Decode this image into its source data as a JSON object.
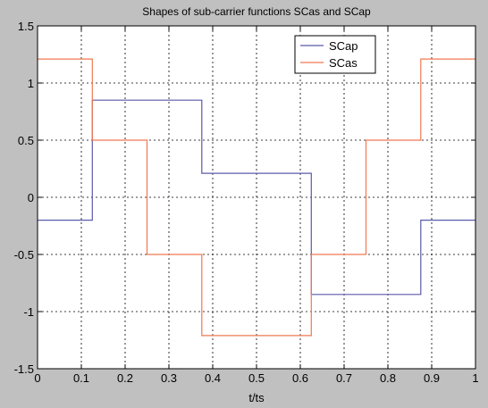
{
  "chart_data": {
    "type": "line",
    "title": "Shapes of sub-carrier functions SCas and SCap",
    "xlabel": "t/ts",
    "ylabel": "",
    "xlim": [
      0,
      1
    ],
    "ylim": [
      -1.5,
      1.5
    ],
    "x_ticks": [
      0,
      0.1,
      0.2,
      0.3,
      0.4,
      0.5,
      0.6,
      0.7,
      0.8,
      0.9,
      1
    ],
    "x_tick_labels": [
      "0",
      "0.1",
      "0.2",
      "0.3",
      "0.4",
      "0.5",
      "0.6",
      "0.7",
      "0.8",
      "0.9",
      "1"
    ],
    "y_ticks": [
      -1.5,
      -1,
      -0.5,
      0,
      0.5,
      1,
      1.5
    ],
    "y_tick_labels": [
      "-1.5",
      "-1",
      "-0.5",
      "0",
      "0.5",
      "1",
      "1.5"
    ],
    "grid": true,
    "legend_position": "top-right",
    "series": [
      {
        "name": "SCap",
        "color": "#5a5aaa",
        "x": [
          0,
          0.125,
          0.125,
          0.375,
          0.375,
          0.625,
          0.625,
          0.875,
          0.875,
          1
        ],
        "y": [
          -0.2,
          -0.2,
          0.85,
          0.85,
          0.21,
          0.21,
          -0.85,
          -0.85,
          -0.2,
          -0.2
        ]
      },
      {
        "name": "SCas",
        "color": "#f07850",
        "x": [
          0,
          0.125,
          0.125,
          0.25,
          0.25,
          0.375,
          0.375,
          0.625,
          0.625,
          0.75,
          0.75,
          0.875,
          0.875,
          1
        ],
        "y": [
          1.21,
          1.21,
          0.5,
          0.5,
          -0.5,
          -0.5,
          -1.21,
          -1.21,
          -0.5,
          -0.5,
          0.5,
          0.5,
          1.21,
          1.21
        ]
      }
    ]
  }
}
